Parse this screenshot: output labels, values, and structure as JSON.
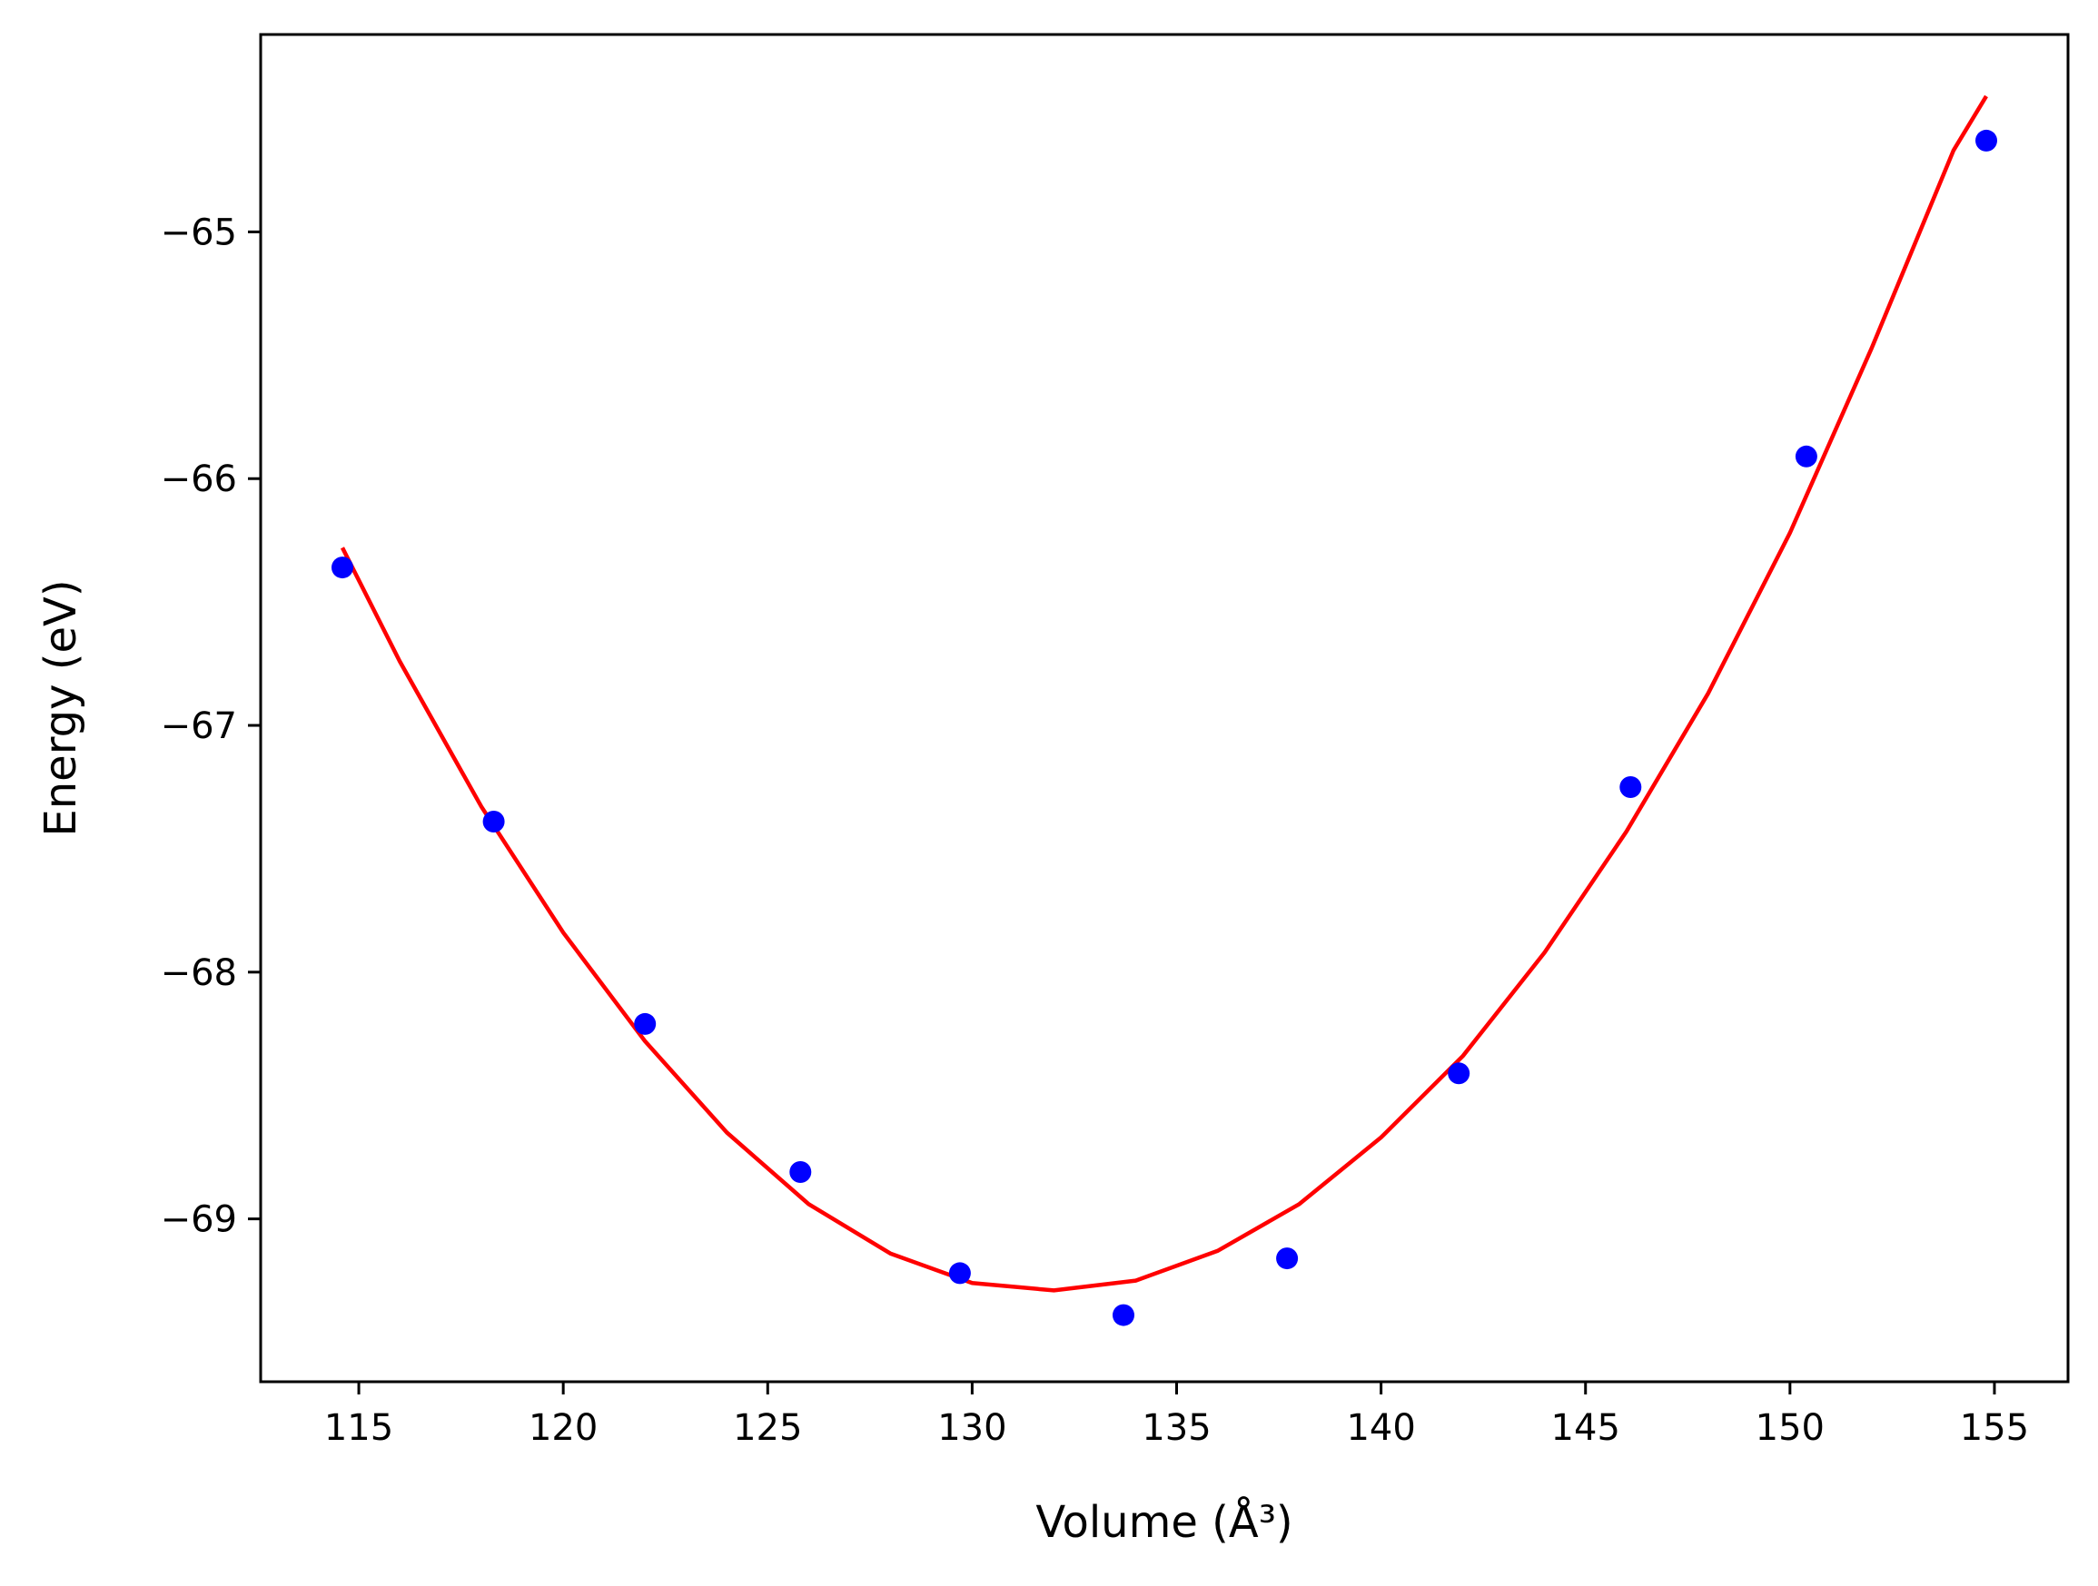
{
  "chart_data": {
    "type": "scatter",
    "title": "",
    "xlabel": "Volume (Å³)",
    "ylabel": "Energy (eV)",
    "xlim": [
      112.6,
      156.8
    ],
    "ylim": [
      -69.66,
      -64.2
    ],
    "x_ticks": [
      115,
      120,
      125,
      130,
      135,
      140,
      145,
      150,
      155
    ],
    "y_ticks": [
      -65,
      -66,
      -67,
      -68,
      -69
    ],
    "grid": false,
    "legend": "none",
    "series": [
      {
        "kind": "points",
        "color": "#0000ff",
        "x": [
          114.6,
          118.3,
          122.0,
          125.8,
          129.7,
          133.7,
          137.7,
          141.9,
          146.1,
          150.4,
          154.8
        ],
        "y": [
          -66.36,
          -67.39,
          -68.21,
          -68.81,
          -69.22,
          -69.39,
          -69.16,
          -68.41,
          -67.25,
          -65.91,
          -64.63
        ]
      },
      {
        "kind": "fit",
        "color": "#ff0000",
        "x": [
          114.6,
          116,
          118,
          120,
          122,
          124,
          126,
          128,
          130,
          132,
          134,
          136,
          138,
          140,
          142,
          144,
          146,
          148,
          150,
          152,
          154,
          154.8
        ],
        "y": [
          -66.28,
          -66.74,
          -67.33,
          -67.84,
          -68.28,
          -68.65,
          -68.94,
          -69.14,
          -69.26,
          -69.29,
          -69.25,
          -69.13,
          -68.94,
          -68.67,
          -68.34,
          -67.92,
          -67.43,
          -66.87,
          -66.22,
          -65.47,
          -64.67,
          -64.45
        ]
      }
    ]
  }
}
